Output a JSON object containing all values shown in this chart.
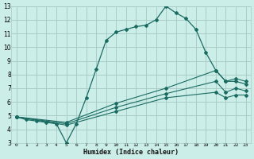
{
  "xlabel": "Humidex (Indice chaleur)",
  "bg_color": "#cceee8",
  "grid_color": "#aaccc8",
  "line_color": "#1a6b62",
  "xlim": [
    -0.5,
    23.5
  ],
  "ylim": [
    3,
    13
  ],
  "xticks": [
    0,
    1,
    2,
    3,
    4,
    5,
    6,
    7,
    8,
    9,
    10,
    11,
    12,
    13,
    14,
    15,
    16,
    17,
    18,
    19,
    20,
    21,
    22,
    23
  ],
  "yticks": [
    3,
    4,
    5,
    6,
    7,
    8,
    9,
    10,
    11,
    12,
    13
  ],
  "main_x": [
    0,
    1,
    2,
    3,
    4,
    5,
    6,
    7,
    8,
    9,
    10,
    11,
    12,
    13,
    14,
    15,
    16,
    17,
    18,
    19,
    20,
    21,
    22,
    23
  ],
  "main_y": [
    4.9,
    4.7,
    4.6,
    4.5,
    4.4,
    3.0,
    4.4,
    6.3,
    8.4,
    10.5,
    11.1,
    11.3,
    11.5,
    11.6,
    12.0,
    13.0,
    12.5,
    12.1,
    11.3,
    9.6,
    8.3,
    7.5,
    7.5,
    7.3
  ],
  "line2_x": [
    0,
    5,
    10,
    15,
    20,
    21,
    22,
    23
  ],
  "line2_y": [
    4.9,
    4.5,
    5.9,
    7.0,
    8.3,
    7.5,
    7.7,
    7.5
  ],
  "line3_x": [
    0,
    5,
    10,
    15,
    20,
    21,
    22,
    23
  ],
  "line3_y": [
    4.9,
    4.4,
    5.6,
    6.6,
    7.5,
    6.7,
    7.0,
    6.8
  ],
  "line4_x": [
    0,
    5,
    10,
    15,
    20,
    21,
    22,
    23
  ],
  "line4_y": [
    4.9,
    4.3,
    5.3,
    6.3,
    6.7,
    6.3,
    6.5,
    6.5
  ]
}
